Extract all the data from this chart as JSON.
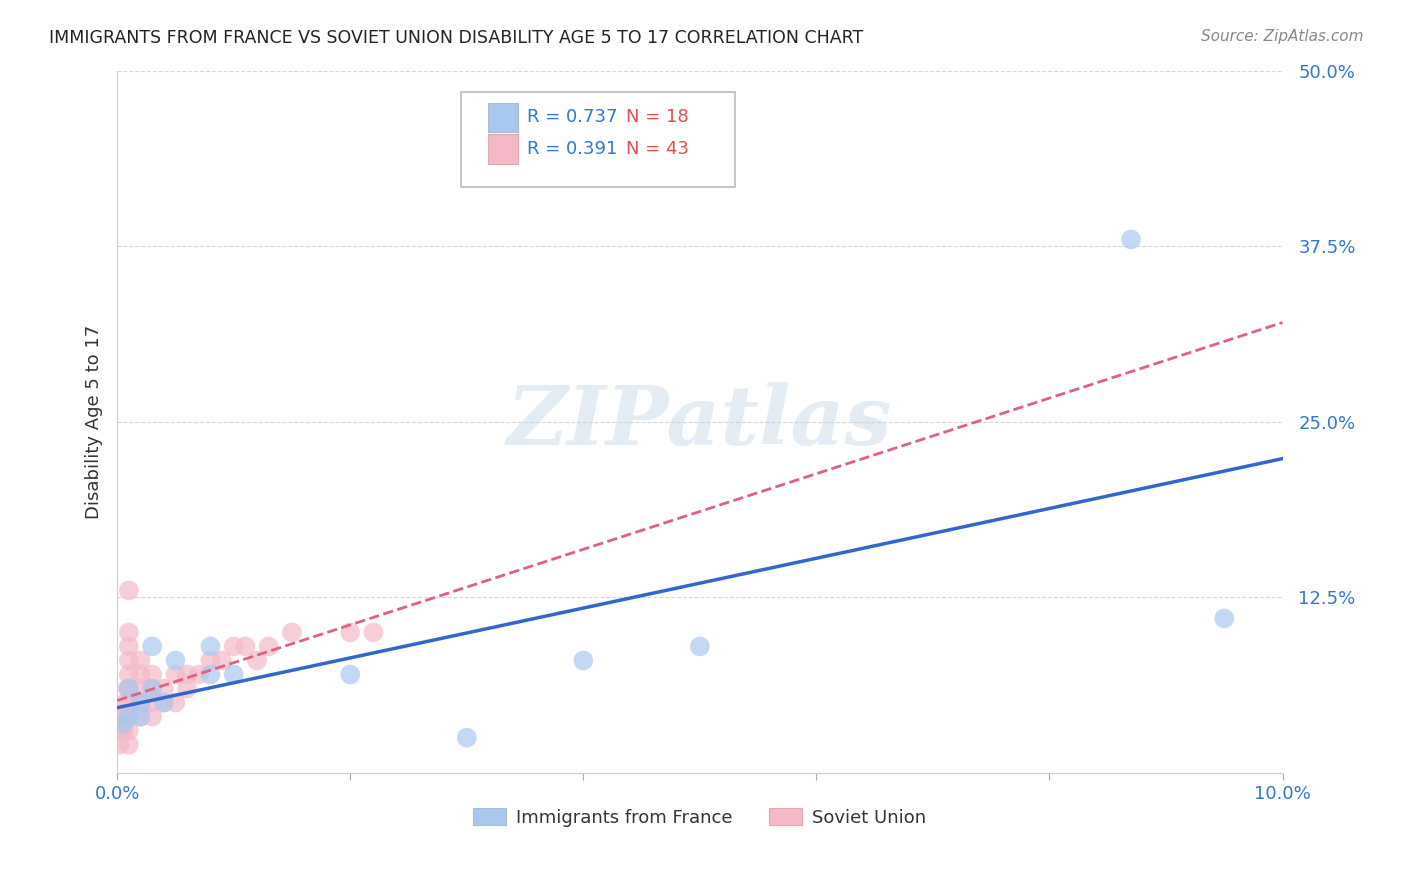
{
  "title": "IMMIGRANTS FROM FRANCE VS SOVIET UNION DISABILITY AGE 5 TO 17 CORRELATION CHART",
  "source": "Source: ZipAtlas.com",
  "ylabel": "Disability Age 5 to 17",
  "xlim": [
    0.0,
    0.1
  ],
  "ylim": [
    0.0,
    0.5
  ],
  "xticks": [
    0.0,
    0.02,
    0.04,
    0.06,
    0.08,
    0.1
  ],
  "yticks": [
    0.0,
    0.125,
    0.25,
    0.375,
    0.5
  ],
  "xtick_labels": [
    "0.0%",
    "",
    "",
    "",
    "",
    "10.0%"
  ],
  "ytick_labels": [
    "",
    "12.5%",
    "25.0%",
    "37.5%",
    "50.0%"
  ],
  "france_R": "0.737",
  "france_N": "18",
  "soviet_R": "0.391",
  "soviet_N": "43",
  "france_color": "#a8c8f0",
  "soviet_color": "#f5b8c8",
  "france_line_color": "#3366cc",
  "soviet_line_color": "#e06080",
  "watermark_text": "ZIPatlas",
  "france_x": [
    0.0005,
    0.001,
    0.001,
    0.002,
    0.002,
    0.003,
    0.003,
    0.004,
    0.005,
    0.008,
    0.008,
    0.01,
    0.02,
    0.03,
    0.04,
    0.05,
    0.087,
    0.095
  ],
  "france_y": [
    0.035,
    0.04,
    0.06,
    0.04,
    0.05,
    0.06,
    0.09,
    0.05,
    0.08,
    0.09,
    0.07,
    0.07,
    0.07,
    0.025,
    0.08,
    0.09,
    0.38,
    0.11
  ],
  "soviet_x": [
    0.0002,
    0.0003,
    0.0004,
    0.0005,
    0.0006,
    0.0007,
    0.0008,
    0.0009,
    0.001,
    0.001,
    0.001,
    0.001,
    0.001,
    0.001,
    0.001,
    0.001,
    0.001,
    0.001,
    0.002,
    0.002,
    0.002,
    0.002,
    0.002,
    0.003,
    0.003,
    0.003,
    0.003,
    0.004,
    0.004,
    0.005,
    0.005,
    0.006,
    0.006,
    0.007,
    0.008,
    0.009,
    0.01,
    0.011,
    0.012,
    0.013,
    0.015,
    0.02,
    0.022
  ],
  "soviet_y": [
    0.02,
    0.03,
    0.035,
    0.04,
    0.03,
    0.05,
    0.04,
    0.06,
    0.02,
    0.03,
    0.04,
    0.05,
    0.06,
    0.07,
    0.08,
    0.09,
    0.1,
    0.13,
    0.04,
    0.05,
    0.06,
    0.07,
    0.08,
    0.04,
    0.05,
    0.06,
    0.07,
    0.05,
    0.06,
    0.05,
    0.07,
    0.06,
    0.07,
    0.07,
    0.08,
    0.08,
    0.09,
    0.09,
    0.08,
    0.09,
    0.1,
    0.1,
    0.1
  ]
}
